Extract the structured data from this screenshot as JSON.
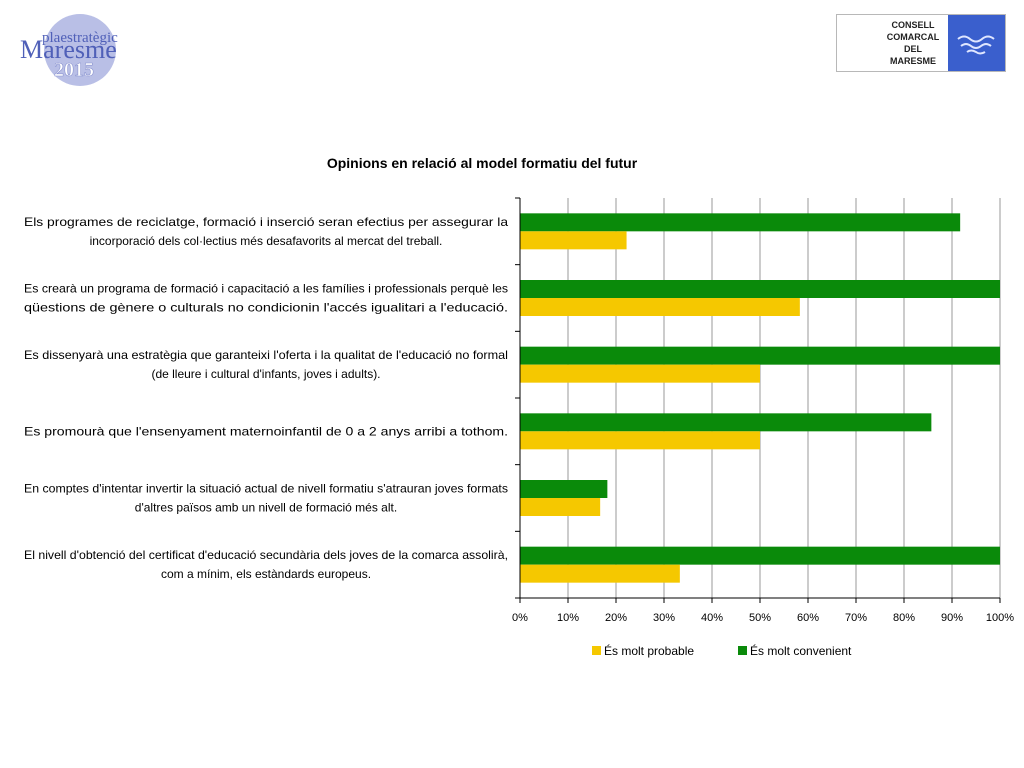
{
  "header": {
    "logo_left": {
      "line1": "plaestratègic",
      "line2": "Maresme",
      "line3": "2015"
    },
    "logo_right": {
      "lines": [
        "CONSELL",
        "COMARCAL",
        "DEL",
        "MARESME"
      ]
    }
  },
  "colors": {
    "convenient": "#0a8a0a",
    "probable": "#f5c800",
    "grid": "#9a9a9a",
    "logo_circle": "#b9bfe6",
    "logo_text": "#5060b8",
    "org_mark": "#3a5fcd"
  },
  "chart_data": {
    "type": "bar",
    "orientation": "horizontal",
    "title": "Opinions en relació al model formatiu del futur",
    "categories": [
      [
        "Els programes de reciclatge, formació i inserció seran efectius per assegurar la",
        "incorporació dels col·lectius més desafavorits al mercat del treball."
      ],
      [
        "Es crearà un programa de formació i capacitació a les famílies i professionals perquè les",
        "qüestions de gènere o culturals no condicionin l'accés igualitari a l'educació."
      ],
      [
        "Es dissenyarà una estratègia que garanteixi l'oferta i la qualitat de l'educació no formal",
        "(de lleure i cultural d'infants, joves i adults)."
      ],
      [
        "Es promourà que l'ensenyament maternoinfantil de 0 a 2 anys arribi a tothom."
      ],
      [
        "En comptes d'intentar invertir la situació actual de nivell formatiu s'atrauran joves formats",
        "d'altres països amb un nivell de formació més alt."
      ],
      [
        "El nivell d'obtenció del certificat d'educació secundària dels joves de la comarca assolirà,",
        "com a mínim, els estàndards europeus."
      ]
    ],
    "series": [
      {
        "name": "És molt convenient",
        "color": "#0a8a0a",
        "values": [
          91.7,
          100,
          100,
          85.7,
          18.2,
          100
        ]
      },
      {
        "name": "És molt probable",
        "color": "#f5c800",
        "values": [
          22.2,
          58.3,
          50,
          50,
          16.7,
          33.3
        ]
      }
    ],
    "xlim": [
      0,
      100
    ],
    "xticks": [
      "0%",
      "10%",
      "20%",
      "30%",
      "40%",
      "50%",
      "60%",
      "70%",
      "80%",
      "90%",
      "100%"
    ],
    "grid": true,
    "legend": {
      "position": "bottom",
      "entries": [
        {
          "label": "És molt probable",
          "color": "#f5c800"
        },
        {
          "label": "És molt convenient",
          "color": "#0a8a0a"
        }
      ]
    }
  }
}
